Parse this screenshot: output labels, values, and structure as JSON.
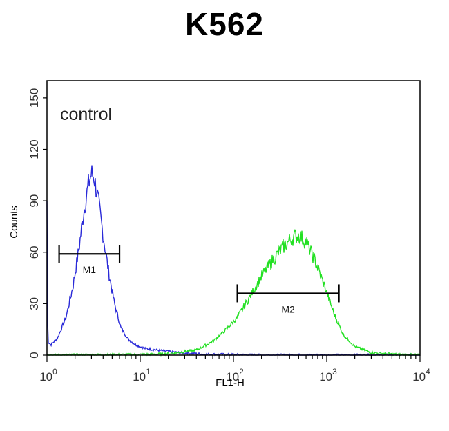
{
  "chart_data": {
    "type": "histogram",
    "title": "K562",
    "xlabel": "FL1-H",
    "ylabel": "Counts",
    "x_scale": "log10",
    "xlim": [
      1,
      10000
    ],
    "ylim": [
      0,
      160
    ],
    "x_ticks": [
      {
        "value": 1,
        "base": "10",
        "exp": "0"
      },
      {
        "value": 10,
        "base": "10",
        "exp": "1"
      },
      {
        "value": 100,
        "base": "10",
        "exp": "2"
      },
      {
        "value": 1000,
        "base": "10",
        "exp": "3"
      },
      {
        "value": 10000,
        "base": "10",
        "exp": "4"
      }
    ],
    "y_ticks": [
      0,
      30,
      60,
      90,
      120,
      150
    ],
    "grid": false,
    "annotation": "control",
    "series": [
      {
        "color": "#2a2ad8",
        "points": [
          [
            1.0,
            90
          ],
          [
            1.02,
            8
          ],
          [
            1.1,
            6
          ],
          [
            1.3,
            10
          ],
          [
            1.6,
            22
          ],
          [
            1.9,
            40
          ],
          [
            2.2,
            62
          ],
          [
            2.5,
            85
          ],
          [
            2.8,
            100
          ],
          [
            3.0,
            106
          ],
          [
            3.2,
            104
          ],
          [
            3.5,
            92
          ],
          [
            4.0,
            70
          ],
          [
            4.6,
            48
          ],
          [
            5.3,
            30
          ],
          [
            6.2,
            16
          ],
          [
            7.5,
            9
          ],
          [
            9.0,
            6
          ],
          [
            11,
            4
          ],
          [
            15,
            3
          ],
          [
            25,
            1.5
          ],
          [
            50,
            0.5
          ],
          [
            200,
            0
          ],
          [
            10000,
            0
          ]
        ]
      },
      {
        "color": "#22e022",
        "points": [
          [
            1.0,
            0
          ],
          [
            10,
            0.3
          ],
          [
            20,
            0.8
          ],
          [
            40,
            3
          ],
          [
            60,
            8
          ],
          [
            80,
            14
          ],
          [
            110,
            22
          ],
          [
            150,
            34
          ],
          [
            200,
            46
          ],
          [
            260,
            55
          ],
          [
            330,
            62
          ],
          [
            420,
            68
          ],
          [
            500,
            70
          ],
          [
            600,
            66
          ],
          [
            750,
            55
          ],
          [
            950,
            40
          ],
          [
            1200,
            24
          ],
          [
            1500,
            12
          ],
          [
            2000,
            5
          ],
          [
            3000,
            1.5
          ],
          [
            5000,
            0.5
          ],
          [
            10000,
            0
          ]
        ]
      }
    ],
    "markers": [
      {
        "label": "M1",
        "x_start": 1.35,
        "x_end": 6.0,
        "y": 59
      },
      {
        "label": "M2",
        "x_start": 110,
        "x_end": 1350,
        "y": 36
      }
    ]
  }
}
